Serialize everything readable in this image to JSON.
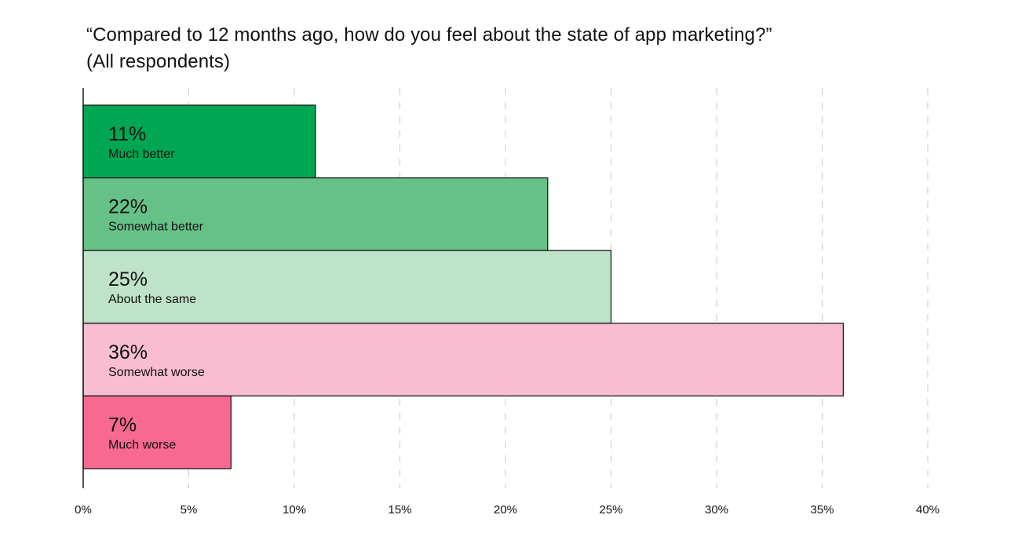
{
  "chart_data": {
    "type": "bar",
    "orientation": "horizontal",
    "title": "“Compared to 12 months ago, how do you feel about the state of app marketing?”",
    "subtitle": "(All respondents)",
    "xlabel": "",
    "ylabel": "",
    "xlim": [
      0,
      40
    ],
    "x_ticks": [
      0,
      5,
      10,
      15,
      20,
      25,
      30,
      35,
      40
    ],
    "x_tick_labels": [
      "0%",
      "5%",
      "10%",
      "15%",
      "20%",
      "25%",
      "30%",
      "35%",
      "40%"
    ],
    "grid": "vertical dashed",
    "legend": "none",
    "categories": [
      "Much better",
      "Somewhat better",
      "About the same",
      "Somewhat worse",
      "Much worse"
    ],
    "values": [
      11,
      22,
      25,
      36,
      7
    ],
    "value_labels": [
      "11%",
      "22%",
      "25%",
      "36%",
      "7%"
    ],
    "colors": [
      "#00a651",
      "#66c187",
      "#bfe3c9",
      "#f8bdd0",
      "#f76991"
    ]
  }
}
